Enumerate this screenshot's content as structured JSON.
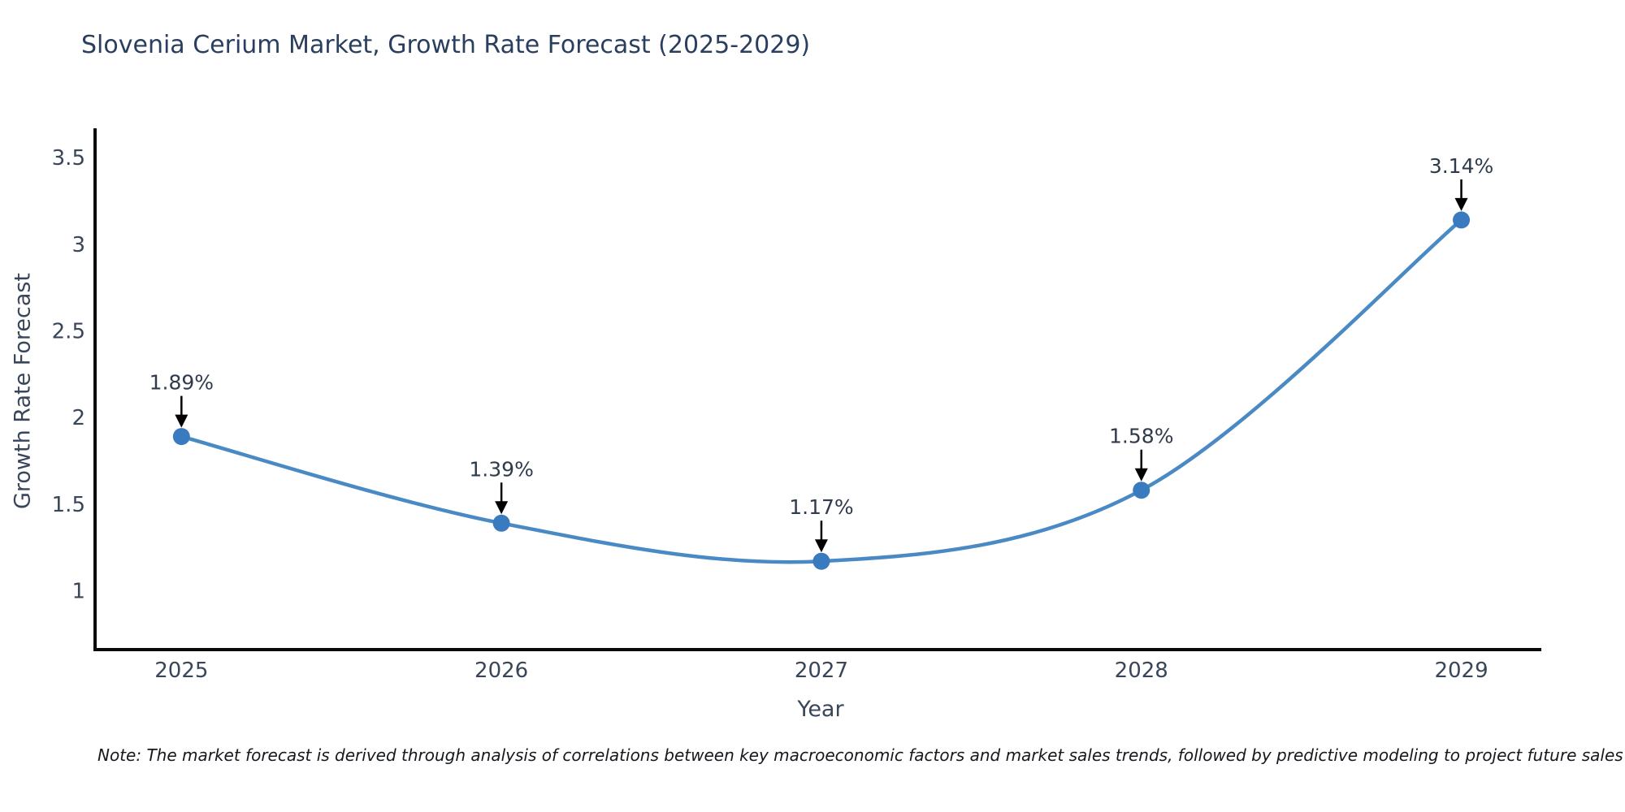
{
  "title": "Slovenia Cerium Market, Growth Rate Forecast (2025-2029)",
  "note": "Note: The market forecast is derived through analysis of correlations between key macroeconomic factors and market sales trends, followed by predictive modeling to project future sales",
  "chart_data": {
    "type": "line",
    "title": "Slovenia Cerium Market, Growth Rate Forecast (2025-2029)",
    "xlabel": "Year",
    "ylabel": "Growth Rate Forecast",
    "x": [
      2025,
      2026,
      2027,
      2028,
      2029
    ],
    "values": [
      1.89,
      1.39,
      1.17,
      1.58,
      3.14
    ],
    "point_labels": [
      "1.89%",
      "1.39%",
      "1.17%",
      "1.58%",
      "3.14%"
    ],
    "xtick_labels": [
      "2025",
      "2026",
      "2027",
      "2028",
      "2029"
    ],
    "yticks": [
      1,
      1.5,
      2,
      2.5,
      3,
      3.5
    ],
    "ytick_labels": [
      "1",
      "1.5",
      "2",
      "2.5",
      "3",
      "3.5"
    ],
    "xlim": [
      2024.73,
      2029.25
    ],
    "ylim": [
      0.66,
      3.66
    ],
    "grid": false,
    "legend": null,
    "curve": "spline",
    "line_color": "#4a8ac4",
    "marker_color": "#3a7bbf",
    "axis_color": "#0a0a0a",
    "tick_color": "#39465a",
    "annotation_color": "#2f3b4c",
    "arrow_color": "#000000"
  }
}
